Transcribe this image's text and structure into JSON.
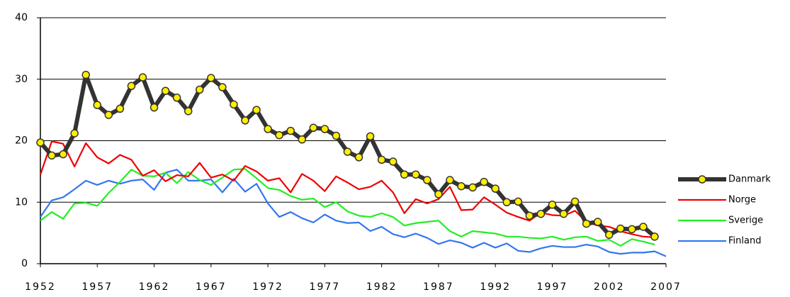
{
  "chart_data": {
    "type": "line",
    "x": [
      1952,
      1953,
      1954,
      1955,
      1956,
      1957,
      1958,
      1959,
      1960,
      1961,
      1962,
      1963,
      1964,
      1965,
      1966,
      1967,
      1968,
      1969,
      1970,
      1971,
      1972,
      1973,
      1974,
      1975,
      1976,
      1977,
      1978,
      1979,
      1980,
      1981,
      1982,
      1983,
      1984,
      1985,
      1986,
      1987,
      1988,
      1989,
      1990,
      1991,
      1992,
      1993,
      1994,
      1995,
      1996,
      1997,
      1998,
      1999,
      2000,
      2001,
      2002,
      2003,
      2004,
      2005,
      2006,
      2007
    ],
    "series": [
      {
        "name": "Danmark",
        "color": "#333333",
        "marker": "circle",
        "marker_color": "#ffee00",
        "values": [
          19.7,
          17.6,
          17.8,
          21.2,
          30.7,
          25.8,
          24.2,
          25.2,
          28.9,
          30.3,
          25.4,
          28.1,
          27.0,
          24.8,
          28.3,
          30.2,
          28.7,
          25.9,
          23.3,
          25.0,
          21.9,
          20.9,
          21.6,
          20.2,
          22.1,
          21.9,
          20.8,
          18.2,
          17.3,
          20.7,
          16.9,
          16.6,
          14.5,
          14.5,
          13.6,
          11.3,
          13.6,
          12.6,
          12.4,
          13.3,
          12.2,
          10.0,
          10.1,
          7.8,
          8.1,
          9.6,
          8.1,
          10.1,
          6.5,
          6.8,
          4.7,
          5.7,
          5.6,
          6.0,
          4.4,
          null
        ]
      },
      {
        "name": "Norge",
        "color": "#ee0000",
        "values": [
          14.5,
          19.9,
          19.5,
          15.8,
          19.6,
          17.3,
          16.3,
          17.7,
          16.9,
          14.3,
          15.2,
          13.4,
          14.4,
          14.2,
          16.4,
          14.0,
          14.5,
          13.5,
          15.9,
          15.0,
          13.5,
          13.9,
          11.6,
          14.6,
          13.5,
          11.8,
          14.2,
          13.2,
          12.1,
          12.5,
          13.5,
          11.6,
          8.2,
          10.5,
          9.8,
          10.5,
          12.5,
          8.7,
          8.8,
          10.8,
          9.6,
          8.3,
          7.6,
          7.0,
          8.3,
          7.9,
          7.8,
          8.6,
          6.8,
          6.2,
          6.0,
          5.3,
          4.8,
          4.4,
          4.3,
          null
        ]
      },
      {
        "name": "Sverige",
        "color": "#22ee22",
        "values": [
          7.0,
          8.4,
          7.3,
          9.8,
          9.9,
          9.4,
          11.5,
          13.3,
          15.3,
          14.3,
          14.2,
          14.8,
          13.1,
          14.9,
          13.6,
          12.8,
          14.0,
          15.3,
          15.4,
          13.9,
          12.3,
          12.0,
          11.0,
          10.4,
          10.6,
          9.2,
          10.0,
          8.5,
          7.8,
          7.6,
          8.2,
          7.6,
          6.2,
          6.6,
          6.8,
          7.0,
          5.3,
          4.4,
          5.3,
          5.1,
          4.9,
          4.4,
          4.4,
          4.2,
          4.1,
          4.4,
          3.9,
          4.3,
          4.4,
          3.7,
          3.9,
          2.9,
          4.0,
          3.6,
          3.1,
          null
        ]
      },
      {
        "name": "Finland",
        "color": "#3377ee",
        "values": [
          7.6,
          10.3,
          10.8,
          12.1,
          13.5,
          12.8,
          13.5,
          13.0,
          13.5,
          13.7,
          12.0,
          14.8,
          15.3,
          13.5,
          13.5,
          13.7,
          11.6,
          13.8,
          11.7,
          13.0,
          9.8,
          7.6,
          8.4,
          7.4,
          6.7,
          8.0,
          7.0,
          6.6,
          6.7,
          5.3,
          6.0,
          4.8,
          4.3,
          4.9,
          4.2,
          3.2,
          3.8,
          3.4,
          2.6,
          3.4,
          2.6,
          3.3,
          2.1,
          1.9,
          2.5,
          2.9,
          2.7,
          2.7,
          3.1,
          2.8,
          1.9,
          1.6,
          1.8,
          1.8,
          2.0,
          1.2
        ]
      }
    ],
    "xlim": [
      1952,
      2007
    ],
    "xticks": [
      1952,
      1957,
      1962,
      1967,
      1972,
      1977,
      1982,
      1987,
      1992,
      1997,
      2002,
      2007
    ],
    "ylim": [
      0,
      40
    ],
    "yticks": [
      0,
      10,
      20,
      30,
      40
    ],
    "grid": true,
    "legend": "right"
  }
}
